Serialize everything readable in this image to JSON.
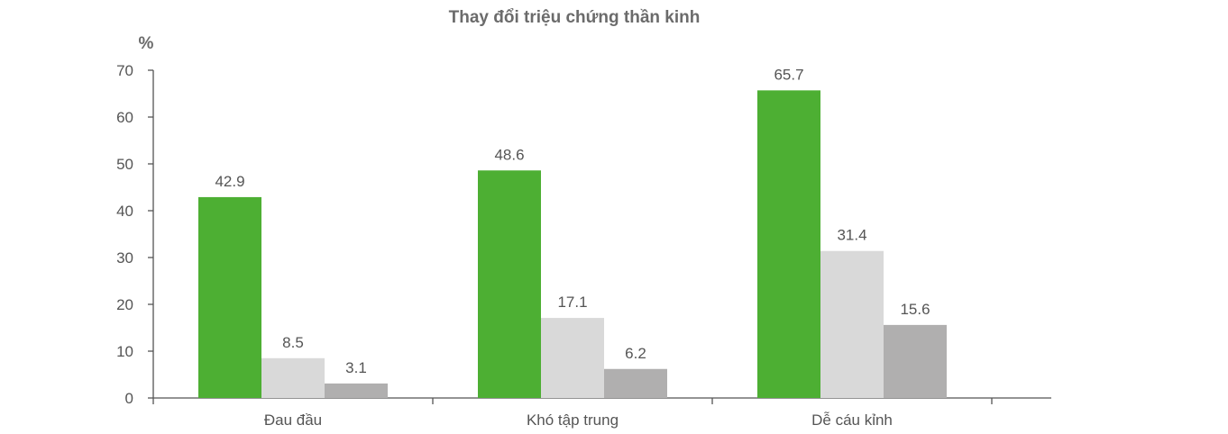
{
  "chart_data": {
    "type": "bar",
    "title": "Thay đổi triệu chứng thần kinh",
    "ylabel": "%",
    "xlabel": "",
    "ylim": [
      0,
      70
    ],
    "yticks": [
      0,
      10,
      20,
      30,
      40,
      50,
      60,
      70
    ],
    "categories": [
      "Đau đầu",
      "Khó tập trung",
      "Dễ cáu kỉnh"
    ],
    "series": [
      {
        "values": [
          42.9,
          48.6,
          65.7
        ],
        "color": "#4daf33"
      },
      {
        "values": [
          8.5,
          17.1,
          31.4
        ],
        "color": "#d9d9d9"
      },
      {
        "values": [
          3.1,
          6.2,
          15.6
        ],
        "color": "#b0afaf"
      }
    ],
    "grid": false,
    "legend": "none"
  }
}
